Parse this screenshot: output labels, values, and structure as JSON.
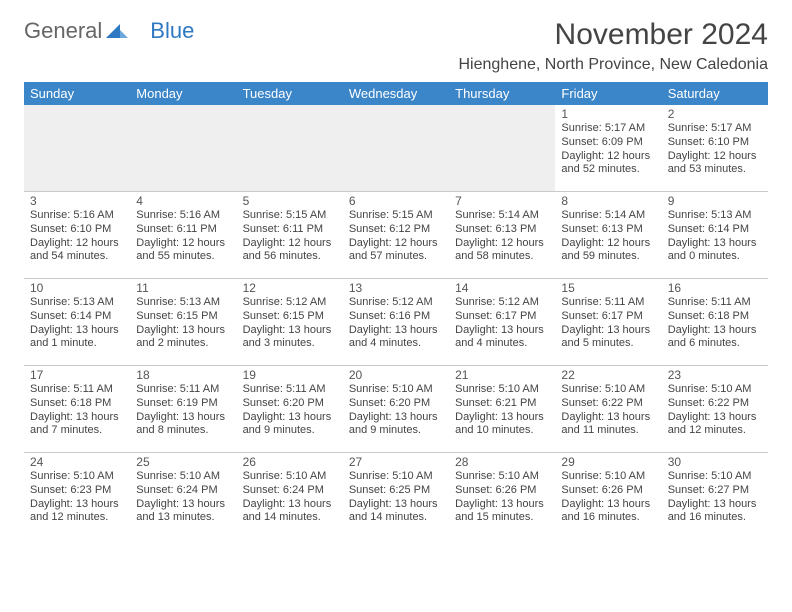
{
  "logo": {
    "part1": "General",
    "part2": "Blue"
  },
  "title": "November 2024",
  "location": "Hienghene, North Province, New Caledonia",
  "colors": {
    "header_bg": "#3b85c9",
    "header_fg": "#ffffff",
    "border": "#c9c9c9",
    "empty_bg": "#efefef",
    "logo_blue": "#2f78c2"
  },
  "weekdays": [
    "Sunday",
    "Monday",
    "Tuesday",
    "Wednesday",
    "Thursday",
    "Friday",
    "Saturday"
  ],
  "weeks": [
    [
      null,
      null,
      null,
      null,
      null,
      {
        "n": "1",
        "sr": "Sunrise: 5:17 AM",
        "ss": "Sunset: 6:09 PM",
        "dl1": "Daylight: 12 hours",
        "dl2": "and 52 minutes."
      },
      {
        "n": "2",
        "sr": "Sunrise: 5:17 AM",
        "ss": "Sunset: 6:10 PM",
        "dl1": "Daylight: 12 hours",
        "dl2": "and 53 minutes."
      }
    ],
    [
      {
        "n": "3",
        "sr": "Sunrise: 5:16 AM",
        "ss": "Sunset: 6:10 PM",
        "dl1": "Daylight: 12 hours",
        "dl2": "and 54 minutes."
      },
      {
        "n": "4",
        "sr": "Sunrise: 5:16 AM",
        "ss": "Sunset: 6:11 PM",
        "dl1": "Daylight: 12 hours",
        "dl2": "and 55 minutes."
      },
      {
        "n": "5",
        "sr": "Sunrise: 5:15 AM",
        "ss": "Sunset: 6:11 PM",
        "dl1": "Daylight: 12 hours",
        "dl2": "and 56 minutes."
      },
      {
        "n": "6",
        "sr": "Sunrise: 5:15 AM",
        "ss": "Sunset: 6:12 PM",
        "dl1": "Daylight: 12 hours",
        "dl2": "and 57 minutes."
      },
      {
        "n": "7",
        "sr": "Sunrise: 5:14 AM",
        "ss": "Sunset: 6:13 PM",
        "dl1": "Daylight: 12 hours",
        "dl2": "and 58 minutes."
      },
      {
        "n": "8",
        "sr": "Sunrise: 5:14 AM",
        "ss": "Sunset: 6:13 PM",
        "dl1": "Daylight: 12 hours",
        "dl2": "and 59 minutes."
      },
      {
        "n": "9",
        "sr": "Sunrise: 5:13 AM",
        "ss": "Sunset: 6:14 PM",
        "dl1": "Daylight: 13 hours",
        "dl2": "and 0 minutes."
      }
    ],
    [
      {
        "n": "10",
        "sr": "Sunrise: 5:13 AM",
        "ss": "Sunset: 6:14 PM",
        "dl1": "Daylight: 13 hours",
        "dl2": "and 1 minute."
      },
      {
        "n": "11",
        "sr": "Sunrise: 5:13 AM",
        "ss": "Sunset: 6:15 PM",
        "dl1": "Daylight: 13 hours",
        "dl2": "and 2 minutes."
      },
      {
        "n": "12",
        "sr": "Sunrise: 5:12 AM",
        "ss": "Sunset: 6:15 PM",
        "dl1": "Daylight: 13 hours",
        "dl2": "and 3 minutes."
      },
      {
        "n": "13",
        "sr": "Sunrise: 5:12 AM",
        "ss": "Sunset: 6:16 PM",
        "dl1": "Daylight: 13 hours",
        "dl2": "and 4 minutes."
      },
      {
        "n": "14",
        "sr": "Sunrise: 5:12 AM",
        "ss": "Sunset: 6:17 PM",
        "dl1": "Daylight: 13 hours",
        "dl2": "and 4 minutes."
      },
      {
        "n": "15",
        "sr": "Sunrise: 5:11 AM",
        "ss": "Sunset: 6:17 PM",
        "dl1": "Daylight: 13 hours",
        "dl2": "and 5 minutes."
      },
      {
        "n": "16",
        "sr": "Sunrise: 5:11 AM",
        "ss": "Sunset: 6:18 PM",
        "dl1": "Daylight: 13 hours",
        "dl2": "and 6 minutes."
      }
    ],
    [
      {
        "n": "17",
        "sr": "Sunrise: 5:11 AM",
        "ss": "Sunset: 6:18 PM",
        "dl1": "Daylight: 13 hours",
        "dl2": "and 7 minutes."
      },
      {
        "n": "18",
        "sr": "Sunrise: 5:11 AM",
        "ss": "Sunset: 6:19 PM",
        "dl1": "Daylight: 13 hours",
        "dl2": "and 8 minutes."
      },
      {
        "n": "19",
        "sr": "Sunrise: 5:11 AM",
        "ss": "Sunset: 6:20 PM",
        "dl1": "Daylight: 13 hours",
        "dl2": "and 9 minutes."
      },
      {
        "n": "20",
        "sr": "Sunrise: 5:10 AM",
        "ss": "Sunset: 6:20 PM",
        "dl1": "Daylight: 13 hours",
        "dl2": "and 9 minutes."
      },
      {
        "n": "21",
        "sr": "Sunrise: 5:10 AM",
        "ss": "Sunset: 6:21 PM",
        "dl1": "Daylight: 13 hours",
        "dl2": "and 10 minutes."
      },
      {
        "n": "22",
        "sr": "Sunrise: 5:10 AM",
        "ss": "Sunset: 6:22 PM",
        "dl1": "Daylight: 13 hours",
        "dl2": "and 11 minutes."
      },
      {
        "n": "23",
        "sr": "Sunrise: 5:10 AM",
        "ss": "Sunset: 6:22 PM",
        "dl1": "Daylight: 13 hours",
        "dl2": "and 12 minutes."
      }
    ],
    [
      {
        "n": "24",
        "sr": "Sunrise: 5:10 AM",
        "ss": "Sunset: 6:23 PM",
        "dl1": "Daylight: 13 hours",
        "dl2": "and 12 minutes."
      },
      {
        "n": "25",
        "sr": "Sunrise: 5:10 AM",
        "ss": "Sunset: 6:24 PM",
        "dl1": "Daylight: 13 hours",
        "dl2": "and 13 minutes."
      },
      {
        "n": "26",
        "sr": "Sunrise: 5:10 AM",
        "ss": "Sunset: 6:24 PM",
        "dl1": "Daylight: 13 hours",
        "dl2": "and 14 minutes."
      },
      {
        "n": "27",
        "sr": "Sunrise: 5:10 AM",
        "ss": "Sunset: 6:25 PM",
        "dl1": "Daylight: 13 hours",
        "dl2": "and 14 minutes."
      },
      {
        "n": "28",
        "sr": "Sunrise: 5:10 AM",
        "ss": "Sunset: 6:26 PM",
        "dl1": "Daylight: 13 hours",
        "dl2": "and 15 minutes."
      },
      {
        "n": "29",
        "sr": "Sunrise: 5:10 AM",
        "ss": "Sunset: 6:26 PM",
        "dl1": "Daylight: 13 hours",
        "dl2": "and 16 minutes."
      },
      {
        "n": "30",
        "sr": "Sunrise: 5:10 AM",
        "ss": "Sunset: 6:27 PM",
        "dl1": "Daylight: 13 hours",
        "dl2": "and 16 minutes."
      }
    ]
  ]
}
